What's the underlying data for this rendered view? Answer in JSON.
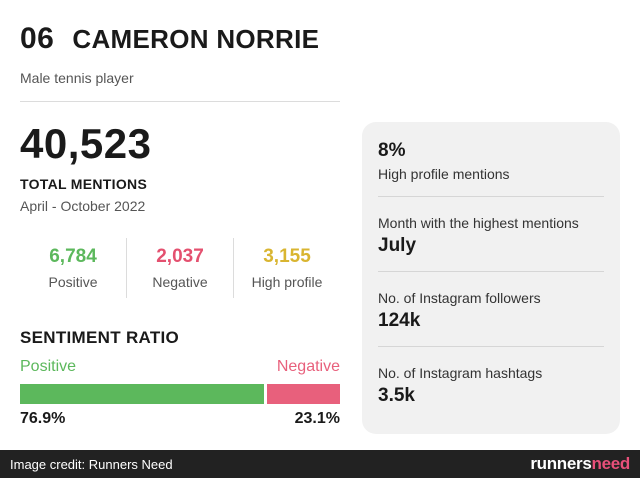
{
  "header": {
    "rank": "06",
    "name": "CAMERON NORRIE",
    "subtitle": "Male tennis player"
  },
  "totals": {
    "value": "40,523",
    "label": "TOTAL MENTIONS",
    "period": "April - October 2022"
  },
  "stats": [
    {
      "value": "6,784",
      "label": "Positive",
      "color": "#5cb85c"
    },
    {
      "value": "2,037",
      "label": "Negative",
      "color": "#e4506f"
    },
    {
      "value": "3,155",
      "label": "High profile",
      "color": "#d9b531"
    }
  ],
  "sentiment": {
    "title": "SENTIMENT RATIO",
    "positive_label": "Positive",
    "negative_label": "Negative",
    "positive_pct": 76.9,
    "positive_text": "76.9%",
    "negative_text": "23.1%",
    "positive_color": "#5cb85c",
    "negative_color": "#e8607c"
  },
  "panel": {
    "high_profile_value": "8%",
    "high_profile_label": "High profile mentions",
    "month_label": "Month with the highest mentions",
    "month_value": "July",
    "followers_label": "No. of Instagram followers",
    "followers_value": "124k",
    "hashtags_label": "No. of Instagram hashtags",
    "hashtags_value": "3.5k"
  },
  "footer": {
    "credit": "Image credit: Runners Need",
    "logo_main": "runners",
    "logo_accent": "need"
  }
}
